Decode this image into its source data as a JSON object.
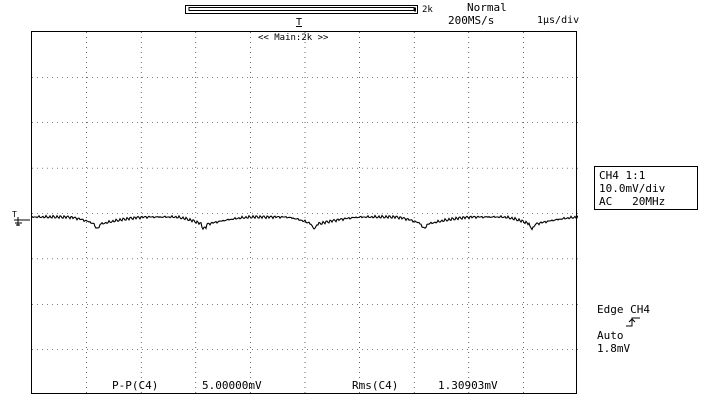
{
  "header": {
    "record_length": "2k",
    "trigger_mode": "Normal",
    "sample_rate": "200MS/s",
    "timebase": "1µs/div",
    "zoom_label": "<< Main:2k >>",
    "trigger_position_marker": "T"
  },
  "channel_info": {
    "line1": "CH4 1:1",
    "line2": "10.0mV/div",
    "line3": "AC   20MHz"
  },
  "trigger_info": {
    "line1": "Edge CH4",
    "line2": "Auto",
    "line3": "1.8mV",
    "slope_icon": "rising-edge-icon"
  },
  "measurements": [
    {
      "label": "P-P(C4)",
      "value": "5.00000mV"
    },
    {
      "label": "Rms(C4)",
      "value": "1.30903mV"
    }
  ],
  "markers": {
    "trigger_level": "T",
    "ground_symbol": "ground-icon"
  },
  "colors": {
    "trace": "#000000",
    "grid": "#000000",
    "background": "#ffffff"
  }
}
